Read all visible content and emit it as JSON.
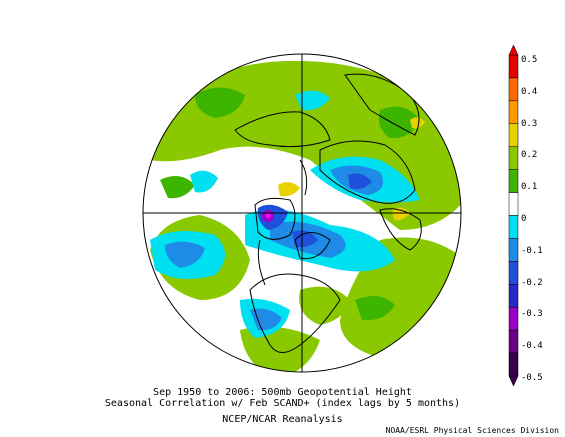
{
  "figure": {
    "title_line1": "Sep 1950 to 2006: 500mb Geopotential Height",
    "title_line2": "Seasonal Correlation w/ Feb SCAND+ (index lags by 5 months)",
    "dataset": "NCEP/NCAR Reanalysis",
    "credit": "NOAA/ESRL Physical Sciences Division"
  },
  "map": {
    "projection": "north-polar-stereographic",
    "variable": "500mb Geopotential Height correlation",
    "dominant_pattern": "green positive correlations over most of hemisphere; blue negative centers over Alaska/Canada, Siberia and the North Atlantic; purple minimum near Alaska"
  },
  "colorbar": {
    "labels": [
      "0.5",
      "0.4",
      "0.3",
      "0.2",
      "0.1",
      "0",
      "-0.1",
      "-0.2",
      "-0.3",
      "-0.4",
      "-0.5"
    ],
    "colors": [
      "#e60000",
      "#ff6a00",
      "#ff9a00",
      "#e6d200",
      "#8ac800",
      "#3cb400",
      "#ffffff",
      "#00e0f0",
      "#1e8ce6",
      "#1e50dc",
      "#2828c8",
      "#9a00c8",
      "#6a008a",
      "#3c004a"
    ]
  }
}
